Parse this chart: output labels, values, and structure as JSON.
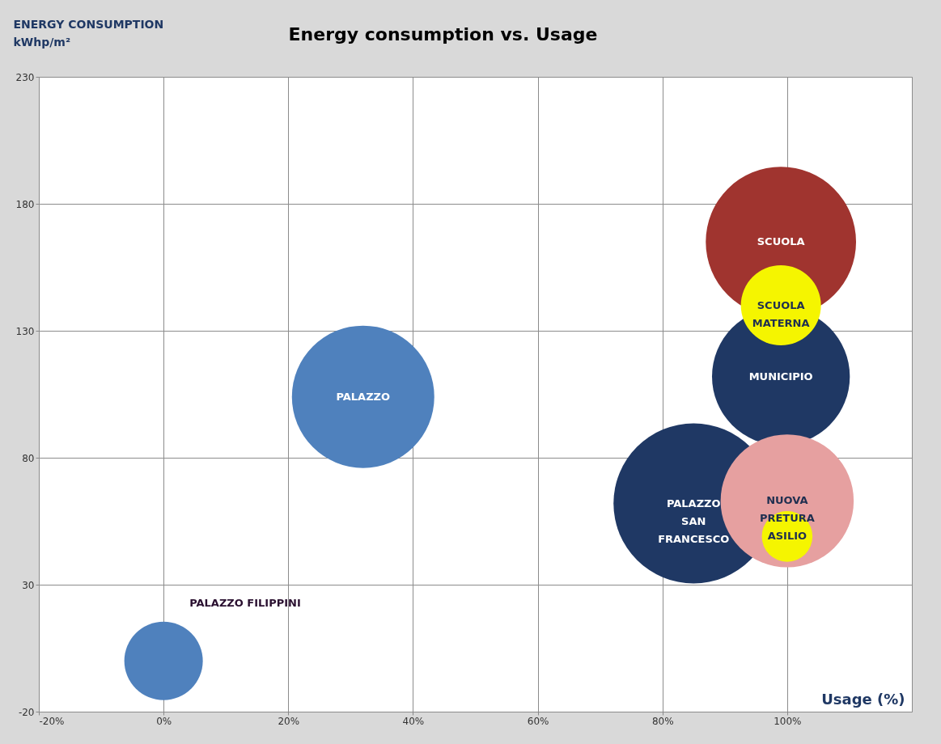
{
  "chart_data": {
    "type": "bubble",
    "title": "Energy consumption vs. Usage",
    "xlabel": "Usage (%)",
    "ylabel": "ENERGY CONSUMPTION\nkWhp/m²",
    "xlim": [
      -20,
      120
    ],
    "ylim": [
      -20,
      230
    ],
    "xticks": [
      {
        "value": -20,
        "label": "-20%"
      },
      {
        "value": 0,
        "label": "0%"
      },
      {
        "value": 20,
        "label": "20%"
      },
      {
        "value": 40,
        "label": "40%"
      },
      {
        "value": 60,
        "label": "60%"
      },
      {
        "value": 80,
        "label": "80%"
      },
      {
        "value": 100,
        "label": "100%"
      }
    ],
    "yticks": [
      -20,
      30,
      80,
      130,
      180,
      230
    ],
    "grid": true,
    "series": [
      {
        "name": "PALAZZO FILIPPINI",
        "color": "#4f81bd",
        "x": [
          0
        ],
        "values": [
          0
        ],
        "sizes": [
          0.24
        ]
      },
      {
        "name": "PALAZZO",
        "color": "#4f81bd",
        "x": [
          32
        ],
        "values": [
          104
        ],
        "sizes": [
          0.79
        ]
      },
      {
        "name": "SCUOLA",
        "color": "#a0342f",
        "x": [
          99
        ],
        "values": [
          165
        ],
        "sizes": [
          0.88
        ]
      },
      {
        "name": "MUNICIPIO",
        "color": "#1f3864",
        "x": [
          99
        ],
        "values": [
          112
        ],
        "sizes": [
          0.74
        ]
      },
      {
        "name": "SCUOLA\nMATERNA",
        "color": "#f5f500",
        "x": [
          99
        ],
        "values": [
          140
        ],
        "sizes": [
          0.25
        ]
      },
      {
        "name": "PALAZZO\nSAN\nFRANCESCO",
        "color": "#1f3864",
        "x": [
          85
        ],
        "values": [
          62
        ],
        "sizes": [
          1
        ]
      },
      {
        "name": "NUOVA\nPRETURA",
        "color": "#e6a0a0",
        "x": [
          100
        ],
        "values": [
          63
        ],
        "sizes": [
          0.69
        ]
      },
      {
        "name": "ASILIO",
        "color": "#f5f500",
        "x": [
          100
        ],
        "values": [
          49
        ],
        "sizes": [
          0.1
        ]
      }
    ]
  }
}
